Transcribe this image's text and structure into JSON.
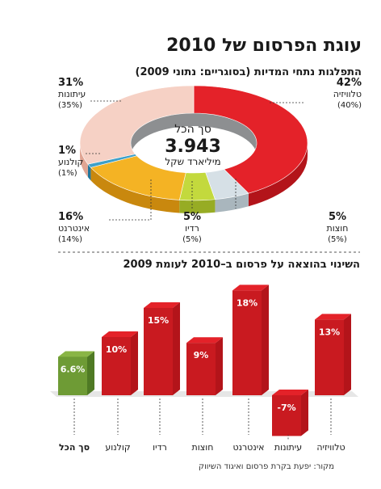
{
  "title": "עוגת הפרסום של 2010",
  "source": "מקור: יפעת בקרת פרסום ואיגוד השיווק",
  "colors": {
    "red_top": "#e42229",
    "red_side": "#b3141a",
    "red_front": "#c91a20",
    "green_top": "#89b545",
    "green_front": "#6e9b35",
    "green_side": "#4f7a24",
    "divider": "#555555",
    "leader": "#333333"
  },
  "chart_data": [
    {
      "type": "pie",
      "donut": true,
      "title": "התפלגות נתחי המדיות (בסוגריים: נתוני 2009)",
      "center": {
        "label": "סך הכל",
        "value": "3.943",
        "unit": "מיליארד שקל"
      },
      "slices": [
        {
          "name": "טלוויזיה",
          "value": 42,
          "value_label": "42%",
          "prev_label": "(40%)",
          "color": "#e42229",
          "dark": "#b3141a"
        },
        {
          "name": "חוצות",
          "value": 5,
          "value_label": "5%",
          "prev_label": "(5%)",
          "color": "#d6e0e6",
          "dark": "#a9b6bd"
        },
        {
          "name": "רדיו",
          "value": 5,
          "value_label": "5%",
          "prev_label": "(5%)",
          "color": "#c3d93d",
          "dark": "#97ac24"
        },
        {
          "name": "אינטרנט",
          "value": 16,
          "value_label": "16%",
          "prev_label": "(14%)",
          "color": "#f4b324",
          "dark": "#c9880e"
        },
        {
          "name": "קולנוע",
          "value": 1,
          "value_label": "1%",
          "prev_label": "(1%)",
          "color": "#3ea0c9",
          "dark": "#22769b"
        },
        {
          "name": "עיתונות",
          "value": 31,
          "value_label": "31%",
          "prev_label": "(35%)",
          "color": "#f6d1c5",
          "dark": "#e0a593"
        }
      ]
    },
    {
      "type": "bar",
      "title": "השינוי בהוצאה על פרסום ב–2010 לעומת 2009",
      "categories": [
        "טלוויזיה",
        "עיתונות",
        "אינטרנט",
        "חוצות",
        "רדיו",
        "קולנוע",
        "סך הכל"
      ],
      "values": [
        13,
        -7,
        18,
        9,
        15,
        10,
        6.6
      ],
      "value_labels": [
        "13%",
        "-7%",
        "18%",
        "9%",
        "15%",
        "10%",
        "6.6%"
      ],
      "highlight": "סך הכל",
      "unit": "%"
    }
  ]
}
